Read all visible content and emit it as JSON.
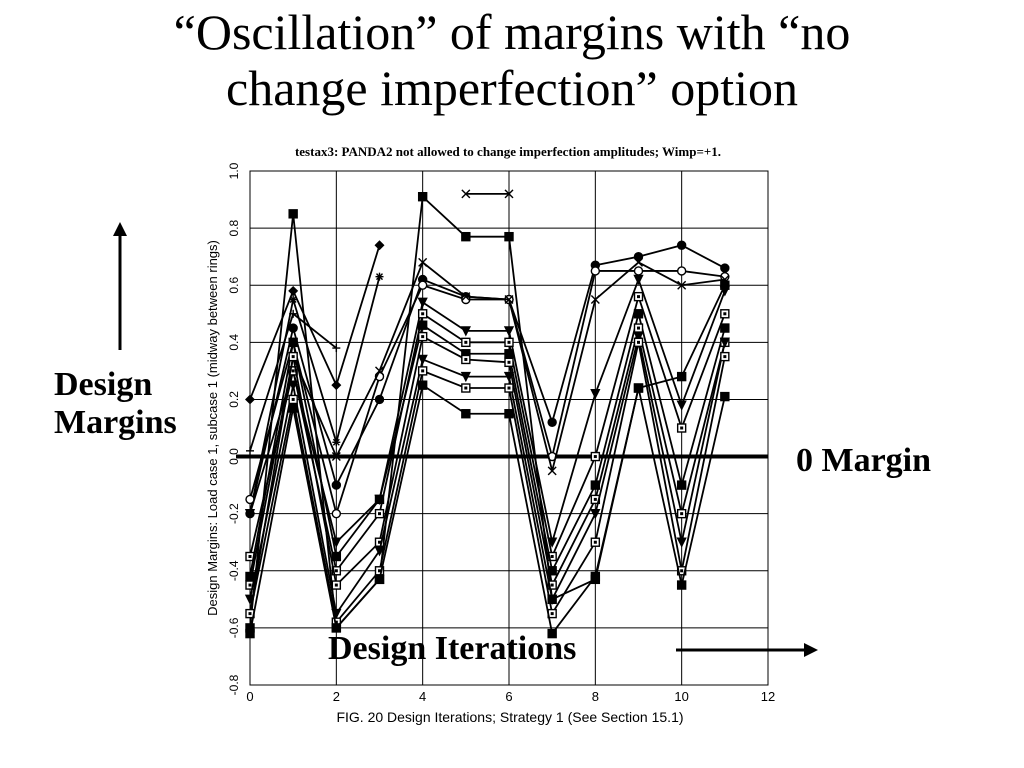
{
  "slide": {
    "title_line1": "“Oscillation” of margins with “no",
    "title_line2": "change imperfection” option",
    "left_label_line1": "Design",
    "left_label_line2": "Margins",
    "right_label": "0 Margin",
    "bottom_label": "Design Iterations"
  },
  "chart_data": {
    "type": "line",
    "title": "testax3: PANDA2 not allowed to change imperfection amplitudes; Wimp=+1.",
    "xlabel": "FIG. 20 Design Iterations; Strategy 1 (See Section 15.1)",
    "ylabel": "Design Margins: Load case 1, subcase 1 (midway between rings)",
    "xlim": [
      0,
      12
    ],
    "ylim": [
      -0.8,
      1.0
    ],
    "xticks": [
      0,
      2,
      4,
      6,
      8,
      10,
      12
    ],
    "yticks": [
      -0.8,
      -0.6,
      -0.4,
      -0.2,
      0.0,
      0.2,
      0.4,
      0.6,
      0.8,
      1.0
    ],
    "grid": true,
    "zero_line": 0.0,
    "x": [
      0,
      1,
      2,
      3,
      4,
      5,
      6,
      7,
      8,
      9,
      10,
      11
    ],
    "series": [
      {
        "marker": "diamond",
        "values": [
          0.2,
          0.58,
          0.25,
          0.74,
          null,
          null,
          null,
          null,
          null,
          null,
          null,
          null
        ]
      },
      {
        "marker": "star",
        "values": [
          -0.2,
          0.55,
          0.05,
          0.63,
          null,
          null,
          null,
          null,
          null,
          null,
          null,
          null
        ]
      },
      {
        "marker": "plus",
        "values": [
          0.02,
          0.5,
          0.38,
          null,
          null,
          null,
          null,
          null,
          null,
          null,
          null,
          null
        ]
      },
      {
        "marker": "x",
        "values": [
          null,
          null,
          null,
          null,
          null,
          0.92,
          0.92,
          null,
          null,
          null,
          null,
          null
        ]
      },
      {
        "marker": "circle",
        "values": [
          -0.2,
          0.45,
          -0.1,
          0.2,
          0.62,
          0.56,
          0.55,
          0.12,
          0.67,
          0.7,
          0.74,
          0.66
        ]
      },
      {
        "marker": "circle-open",
        "values": [
          -0.15,
          0.4,
          -0.2,
          0.28,
          0.6,
          0.55,
          0.55,
          0.0,
          0.65,
          0.65,
          0.65,
          0.63
        ]
      },
      {
        "marker": "x",
        "values": [
          -0.55,
          0.35,
          0.0,
          0.3,
          0.68,
          0.56,
          0.55,
          -0.05,
          0.55,
          0.68,
          0.6,
          0.62
        ]
      },
      {
        "marker": "square",
        "values": [
          -0.6,
          0.85,
          -0.6,
          -0.43,
          0.91,
          0.77,
          0.77,
          -0.5,
          -0.43,
          0.24,
          0.28,
          0.6
        ]
      },
      {
        "marker": "triangle-down",
        "values": [
          -0.2,
          0.3,
          -0.3,
          -0.15,
          0.54,
          0.44,
          0.44,
          -0.3,
          0.22,
          0.62,
          0.18,
          0.58
        ]
      },
      {
        "marker": "square-open",
        "values": [
          -0.35,
          0.3,
          -0.4,
          -0.2,
          0.5,
          0.4,
          0.4,
          -0.35,
          0.0,
          0.56,
          0.1,
          0.5
        ]
      },
      {
        "marker": "square",
        "values": [
          -0.42,
          0.4,
          -0.35,
          -0.15,
          0.46,
          0.36,
          0.36,
          -0.4,
          -0.1,
          0.5,
          -0.1,
          0.45
        ]
      },
      {
        "marker": "square-open",
        "values": [
          -0.45,
          0.35,
          -0.45,
          -0.3,
          0.42,
          0.34,
          0.33,
          -0.45,
          -0.15,
          0.45,
          -0.2,
          0.4
        ]
      },
      {
        "marker": "triangle-down",
        "values": [
          -0.5,
          0.25,
          -0.55,
          -0.33,
          0.34,
          0.28,
          0.28,
          -0.5,
          -0.2,
          0.42,
          -0.3,
          0.4
        ]
      },
      {
        "marker": "square-open",
        "values": [
          -0.55,
          0.2,
          -0.58,
          -0.4,
          0.3,
          0.24,
          0.24,
          -0.55,
          -0.3,
          0.4,
          -0.4,
          0.35
        ]
      },
      {
        "marker": "square",
        "values": [
          -0.62,
          0.17,
          -0.6,
          -0.43,
          0.25,
          0.15,
          0.15,
          -0.62,
          -0.42,
          0.24,
          -0.45,
          0.21
        ]
      }
    ]
  }
}
